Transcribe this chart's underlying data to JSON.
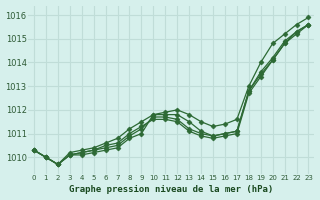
{
  "title": "Graphe pression niveau de la mer (hPa)",
  "xlabel": "Graphe pression niveau de la mer (hPa)",
  "background_color": "#d6f0ec",
  "grid_color": "#c0ddd8",
  "line_color": "#2d6a35",
  "x_ticks": [
    0,
    1,
    2,
    3,
    4,
    5,
    6,
    7,
    8,
    9,
    10,
    11,
    12,
    13,
    14,
    15,
    16,
    17,
    18,
    19,
    20,
    21,
    22,
    23
  ],
  "ylim": [
    1009.3,
    1016.4
  ],
  "yticks": [
    1010,
    1011,
    1012,
    1013,
    1014,
    1015,
    1016
  ],
  "series": [
    [
      1010.3,
      1010.0,
      1009.7,
      1010.1,
      1010.1,
      1010.2,
      1010.3,
      1010.4,
      1010.8,
      1011.0,
      1011.8,
      1011.8,
      1011.8,
      1011.5,
      1011.1,
      1010.9,
      1011.0,
      1011.1,
      1012.8,
      1013.5,
      1014.1,
      1014.8,
      1015.3,
      1015.6
    ],
    [
      1010.3,
      1010.0,
      1009.7,
      1010.1,
      1010.2,
      1010.3,
      1010.4,
      1010.5,
      1010.9,
      1011.2,
      1011.7,
      1011.7,
      1011.6,
      1011.2,
      1011.0,
      1010.9,
      1011.0,
      1011.1,
      1012.8,
      1013.6,
      1014.2,
      1014.9,
      1015.3,
      1015.6
    ],
    [
      1010.3,
      1010.0,
      1009.7,
      1010.1,
      1010.2,
      1010.3,
      1010.5,
      1010.6,
      1011.0,
      1011.3,
      1011.6,
      1011.6,
      1011.5,
      1011.1,
      1010.9,
      1010.8,
      1010.9,
      1011.0,
      1012.7,
      1013.4,
      1014.1,
      1014.8,
      1015.2,
      1015.6
    ],
    [
      1010.3,
      1010.0,
      1009.7,
      1010.2,
      1010.3,
      1010.4,
      1010.6,
      1010.8,
      1011.2,
      1011.5,
      1011.8,
      1011.9,
      1012.0,
      1011.8,
      1011.5,
      1011.3,
      1011.4,
      1011.6,
      1013.0,
      1014.0,
      1014.8,
      1015.2,
      1015.6,
      1015.9
    ]
  ]
}
